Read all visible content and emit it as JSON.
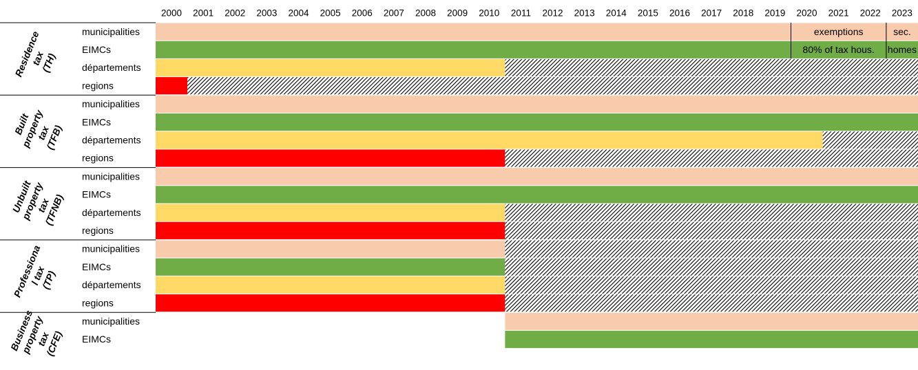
{
  "years": [
    2000,
    2001,
    2002,
    2003,
    2004,
    2005,
    2006,
    2007,
    2008,
    2009,
    2010,
    2011,
    2012,
    2013,
    2014,
    2015,
    2016,
    2017,
    2018,
    2019,
    2020,
    2021,
    2022,
    2023
  ],
  "groups": [
    {
      "label_lines": [
        "Residence",
        "tax",
        "(TH)"
      ],
      "rows": [
        {
          "name": "municipalities",
          "spans": [
            {
              "from": 2000,
              "to": 2023,
              "fill": "#f8cbad"
            }
          ]
        },
        {
          "name": "EIMCs",
          "spans": [
            {
              "from": 2000,
              "to": 2023,
              "fill": "#70ad47"
            }
          ]
        },
        {
          "name": "départements",
          "spans": [
            {
              "from": 2000,
              "to": 2010,
              "fill": "#ffd966"
            },
            {
              "from": 2011,
              "to": 2023,
              "fill": "hatch"
            }
          ]
        },
        {
          "name": "regions",
          "spans": [
            {
              "from": 2000,
              "to": 2000,
              "fill": "#ff0000"
            },
            {
              "from": 2001,
              "to": 2023,
              "fill": "hatch"
            }
          ]
        }
      ],
      "notes": [
        {
          "row": 0,
          "from": 2020,
          "to": 2022,
          "text": "exemptions"
        },
        {
          "row": 0,
          "from": 2023,
          "to": 2023,
          "text": "sec."
        },
        {
          "row": 1,
          "from": 2020,
          "to": 2022,
          "text": "80% of tax hous."
        },
        {
          "row": 1,
          "from": 2023,
          "to": 2023,
          "text": "homes"
        }
      ]
    },
    {
      "label_lines": [
        "Built",
        "property",
        "tax",
        "(TFB)"
      ],
      "rows": [
        {
          "name": "municipalities",
          "spans": [
            {
              "from": 2000,
              "to": 2023,
              "fill": "#f8cbad"
            }
          ]
        },
        {
          "name": "EIMCs",
          "spans": [
            {
              "from": 2000,
              "to": 2023,
              "fill": "#70ad47"
            }
          ]
        },
        {
          "name": "départements",
          "spans": [
            {
              "from": 2000,
              "to": 2020,
              "fill": "#ffd966"
            },
            {
              "from": 2021,
              "to": 2023,
              "fill": "hatch"
            }
          ]
        },
        {
          "name": "regions",
          "spans": [
            {
              "from": 2000,
              "to": 2010,
              "fill": "#ff0000"
            },
            {
              "from": 2011,
              "to": 2023,
              "fill": "hatch"
            }
          ]
        }
      ]
    },
    {
      "label_lines": [
        "Unbuilt",
        "property",
        "tax",
        "(TFNB)"
      ],
      "rows": [
        {
          "name": "municipalities",
          "spans": [
            {
              "from": 2000,
              "to": 2023,
              "fill": "#f8cbad"
            }
          ]
        },
        {
          "name": "EIMCs",
          "spans": [
            {
              "from": 2000,
              "to": 2023,
              "fill": "#70ad47"
            }
          ]
        },
        {
          "name": "départements",
          "spans": [
            {
              "from": 2000,
              "to": 2010,
              "fill": "#ffd966"
            },
            {
              "from": 2011,
              "to": 2023,
              "fill": "hatch"
            }
          ]
        },
        {
          "name": "regions",
          "spans": [
            {
              "from": 2000,
              "to": 2010,
              "fill": "#ff0000"
            },
            {
              "from": 2011,
              "to": 2023,
              "fill": "hatch"
            }
          ]
        }
      ]
    },
    {
      "label_lines": [
        "Professiona",
        "l tax",
        "(TP)"
      ],
      "rows": [
        {
          "name": "municipalities",
          "spans": [
            {
              "from": 2000,
              "to": 2010,
              "fill": "#f8cbad"
            },
            {
              "from": 2011,
              "to": 2023,
              "fill": "hatch"
            }
          ]
        },
        {
          "name": "EIMCs",
          "spans": [
            {
              "from": 2000,
              "to": 2010,
              "fill": "#70ad47"
            },
            {
              "from": 2011,
              "to": 2023,
              "fill": "hatch"
            }
          ]
        },
        {
          "name": "départements",
          "spans": [
            {
              "from": 2000,
              "to": 2010,
              "fill": "#ffd966"
            },
            {
              "from": 2011,
              "to": 2023,
              "fill": "hatch"
            }
          ]
        },
        {
          "name": "regions",
          "spans": [
            {
              "from": 2000,
              "to": 2010,
              "fill": "#ff0000"
            },
            {
              "from": 2011,
              "to": 2023,
              "fill": "hatch"
            }
          ]
        }
      ]
    },
    {
      "label_lines": [
        "Business",
        "property",
        "tax",
        "(CFE)"
      ],
      "rows": [
        {
          "name": "municipalities",
          "spans": [
            {
              "from": 2011,
              "to": 2023,
              "fill": "#f8cbad"
            }
          ]
        },
        {
          "name": "EIMCs",
          "spans": [
            {
              "from": 2011,
              "to": 2023,
              "fill": "#70ad47"
            }
          ]
        }
      ]
    }
  ]
}
